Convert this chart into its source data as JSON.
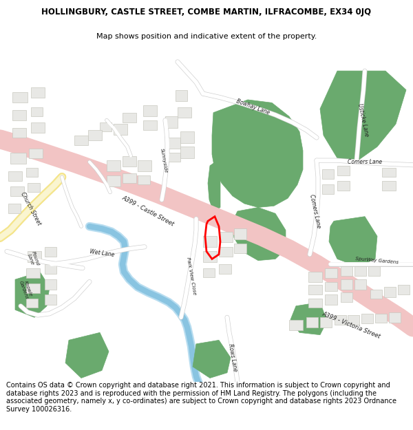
{
  "title_line1": "HOLLINGBURY, CASTLE STREET, COMBE MARTIN, ILFRACOMBE, EX34 0JQ",
  "title_line2": "Map shows position and indicative extent of the property.",
  "footer_text": "Contains OS data © Crown copyright and database right 2021. This information is subject to Crown copyright and database rights 2023 and is reproduced with the permission of HM Land Registry. The polygons (including the associated geometry, namely x, y co-ordinates) are subject to Crown copyright and database rights 2023 Ordnance Survey 100026316.",
  "title_fontsize": 8.5,
  "subtitle_fontsize": 8,
  "footer_fontsize": 7.0,
  "fig_width": 6.0,
  "fig_height": 6.25,
  "map_bg": "#ffffff",
  "road_pink": "#f2c4c4",
  "road_yellow": "#f5e68c",
  "water_blue": "#89c4e1",
  "green_fill": "#6aaa6e",
  "building_fill": "#e8e8e5",
  "building_stroke": "#c8c8c0",
  "property_stroke": "#ff0000",
  "background_color": "#ffffff"
}
